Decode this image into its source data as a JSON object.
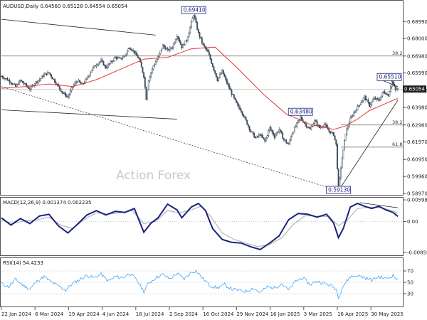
{
  "chart_data": [
    {
      "type": "candlestick",
      "panel": "price",
      "title": "AUDUSD,Daily",
      "ohlc_readout": "0.64560 0.65128 0.64554 0.65054",
      "last_price": "0.65054",
      "ylim": [
        0.5897,
        0.7008
      ],
      "y_ticks": [
        "0.68990",
        "0.68000",
        "0.66980",
        "0.65990",
        "0.64970",
        "0.63980",
        "0.62960",
        "0.61970",
        "0.60950",
        "0.59960",
        "0.58970"
      ],
      "x_ticks": [
        "22 Jan 2024",
        "6 Mar 2024",
        "19 Apr 2024",
        "4 Jun 2024",
        "18 Jul 2024",
        "2 Sep 2024",
        "16 Oct 2024",
        "29 Nov 2024",
        "16 Jan 2025",
        "3 Mar 2025",
        "16 Apr 2025",
        "30 May 2025"
      ],
      "close_path": [
        [
          0,
          0.658
        ],
        [
          4,
          0.6565
        ],
        [
          8,
          0.6545
        ],
        [
          12,
          0.652
        ],
        [
          16,
          0.6555
        ],
        [
          20,
          0.653
        ],
        [
          24,
          0.6505
        ],
        [
          28,
          0.654
        ],
        [
          32,
          0.656
        ],
        [
          36,
          0.659
        ],
        [
          40,
          0.66
        ],
        [
          44,
          0.656
        ],
        [
          48,
          0.652
        ],
        [
          52,
          0.648
        ],
        [
          56,
          0.646
        ],
        [
          60,
          0.652
        ],
        [
          64,
          0.6555
        ],
        [
          68,
          0.653
        ],
        [
          72,
          0.6565
        ],
        [
          76,
          0.662
        ],
        [
          80,
          0.665
        ],
        [
          84,
          0.667
        ],
        [
          88,
          0.663
        ],
        [
          92,
          0.666
        ],
        [
          96,
          0.669
        ],
        [
          100,
          0.668
        ],
        [
          104,
          0.67
        ],
        [
          108,
          0.675
        ],
        [
          112,
          0.672
        ],
        [
          116,
          0.668
        ],
        [
          120,
          0.658
        ],
        [
          122,
          0.645
        ],
        [
          124,
          0.656
        ],
        [
          128,
          0.664
        ],
        [
          132,
          0.669
        ],
        [
          136,
          0.676
        ],
        [
          140,
          0.673
        ],
        [
          144,
          0.675
        ],
        [
          148,
          0.682
        ],
        [
          152,
          0.675
        ],
        [
          156,
          0.679
        ],
        [
          160,
          0.689
        ],
        [
          162,
          0.6941
        ],
        [
          166,
          0.683
        ],
        [
          170,
          0.676
        ],
        [
          174,
          0.672
        ],
        [
          178,
          0.664
        ],
        [
          182,
          0.656
        ],
        [
          186,
          0.661
        ],
        [
          190,
          0.654
        ],
        [
          194,
          0.648
        ],
        [
          198,
          0.642
        ],
        [
          202,
          0.638
        ],
        [
          206,
          0.632
        ],
        [
          210,
          0.626
        ],
        [
          214,
          0.622
        ],
        [
          218,
          0.624
        ],
        [
          222,
          0.62
        ],
        [
          226,
          0.628
        ],
        [
          230,
          0.623
        ],
        [
          234,
          0.627
        ],
        [
          238,
          0.621
        ],
        [
          242,
          0.618
        ],
        [
          244,
          0.6235
        ],
        [
          248,
          0.629
        ],
        [
          252,
          0.634
        ],
        [
          256,
          0.63
        ],
        [
          260,
          0.627
        ],
        [
          264,
          0.632
        ],
        [
          268,
          0.628
        ],
        [
          272,
          0.63
        ],
        [
          276,
          0.626
        ],
        [
          280,
          0.624
        ],
        [
          282,
          0.618
        ],
        [
          284,
          0.5913
        ],
        [
          286,
          0.605
        ],
        [
          290,
          0.625
        ],
        [
          294,
          0.633
        ],
        [
          298,
          0.638
        ],
        [
          302,
          0.642
        ],
        [
          306,
          0.646
        ],
        [
          310,
          0.641
        ],
        [
          314,
          0.645
        ],
        [
          318,
          0.644
        ],
        [
          322,
          0.649
        ],
        [
          326,
          0.647
        ],
        [
          329,
          0.6551
        ],
        [
          332,
          0.65
        ],
        [
          334,
          0.6505
        ]
      ],
      "sma_path": [
        [
          0,
          0.651
        ],
        [
          20,
          0.652
        ],
        [
          40,
          0.6535
        ],
        [
          60,
          0.652
        ],
        [
          80,
          0.656
        ],
        [
          100,
          0.662
        ],
        [
          120,
          0.668
        ],
        [
          140,
          0.669
        ],
        [
          160,
          0.674
        ],
        [
          180,
          0.675
        ],
        [
          200,
          0.662
        ],
        [
          220,
          0.648
        ],
        [
          240,
          0.636
        ],
        [
          260,
          0.63
        ],
        [
          280,
          0.627
        ],
        [
          290,
          0.629
        ],
        [
          300,
          0.633
        ],
        [
          310,
          0.638
        ],
        [
          320,
          0.641
        ],
        [
          330,
          0.644
        ],
        [
          334,
          0.645
        ]
      ],
      "labels": [
        "0.69410",
        "0.63480",
        "0.65510",
        "0.59130"
      ],
      "fib_levels": [
        {
          "label": "38.2",
          "value": 0.6698,
          "x_start": 0
        },
        {
          "label": "38.2",
          "value": 0.6296,
          "x_start": 286
        },
        {
          "label": "61.8",
          "value": 0.6167,
          "x_start": 286
        }
      ],
      "watermark": "Action Forex"
    },
    {
      "type": "line",
      "panel": "macd",
      "title": "MACD(12,26,9) 0.001374 0.002235",
      "ylim": [
        -0.0092,
        0.0062
      ],
      "y_ticks": [
        "0.005981",
        "0.00",
        "-0.00859"
      ],
      "series": [
        {
          "values": [
            [
              0,
              0.001
            ],
            [
              8,
              -0.001
            ],
            [
              16,
              0.0008
            ],
            [
              24,
              -0.0006
            ],
            [
              32,
              0.0015
            ],
            [
              40,
              0.002
            ],
            [
              48,
              -0.0012
            ],
            [
              56,
              -0.0032
            ],
            [
              64,
              -0.0008
            ],
            [
              72,
              0.0018
            ],
            [
              80,
              0.003
            ],
            [
              88,
              0.0018
            ],
            [
              96,
              0.0028
            ],
            [
              104,
              0.0025
            ],
            [
              112,
              0.0036
            ],
            [
              120,
              -0.003
            ],
            [
              126,
              -0.0005
            ],
            [
              132,
              0.001
            ],
            [
              140,
              0.0048
            ],
            [
              148,
              0.0032
            ],
            [
              152,
              0.001
            ],
            [
              160,
              0.004
            ],
            [
              166,
              0.005
            ],
            [
              172,
              0.003
            ],
            [
              178,
              -0.002
            ],
            [
              186,
              -0.005
            ],
            [
              194,
              -0.0058
            ],
            [
              202,
              -0.006
            ],
            [
              210,
              -0.007
            ],
            [
              218,
              -0.0078
            ],
            [
              226,
              -0.006
            ],
            [
              234,
              -0.004
            ],
            [
              242,
              0.0005
            ],
            [
              250,
              0.0022
            ],
            [
              258,
              0.002
            ],
            [
              266,
              0.0012
            ],
            [
              274,
              0.002
            ],
            [
              280,
              -0.0005
            ],
            [
              284,
              -0.0045
            ],
            [
              288,
              -0.002
            ],
            [
              294,
              0.004
            ],
            [
              300,
              0.005
            ],
            [
              306,
              0.0042
            ],
            [
              312,
              0.0036
            ],
            [
              318,
              0.0042
            ],
            [
              324,
              0.0032
            ],
            [
              330,
              0.0025
            ],
            [
              334,
              0.0014
            ]
          ]
        },
        {
          "values": [
            [
              0,
              0.0004
            ],
            [
              10,
              -0.0006
            ],
            [
              20,
              0.0002
            ],
            [
              30,
              0.0004
            ],
            [
              40,
              0.0012
            ],
            [
              50,
              -0.001
            ],
            [
              60,
              -0.002
            ],
            [
              70,
              0.0006
            ],
            [
              80,
              0.0024
            ],
            [
              90,
              0.002
            ],
            [
              100,
              0.0024
            ],
            [
              110,
              0.003
            ],
            [
              120,
              -0.0006
            ],
            [
              130,
              0.0
            ],
            [
              140,
              0.003
            ],
            [
              150,
              0.0024
            ],
            [
              160,
              0.0032
            ],
            [
              168,
              0.0042
            ],
            [
              176,
              0.0016
            ],
            [
              186,
              -0.0032
            ],
            [
              196,
              -0.005
            ],
            [
              206,
              -0.006
            ],
            [
              216,
              -0.007
            ],
            [
              226,
              -0.0064
            ],
            [
              236,
              -0.0046
            ],
            [
              246,
              -0.0008
            ],
            [
              256,
              0.0016
            ],
            [
              266,
              0.0014
            ],
            [
              276,
              0.0014
            ],
            [
              284,
              -0.0012
            ],
            [
              292,
              0.0006
            ],
            [
              300,
              0.0036
            ],
            [
              310,
              0.004
            ],
            [
              320,
              0.0038
            ],
            [
              330,
              0.003
            ],
            [
              334,
              0.0022
            ]
          ]
        }
      ]
    },
    {
      "type": "line",
      "panel": "rsi",
      "title": "RSI(14) 54.4233",
      "ylim": [
        10,
        90
      ],
      "y_ticks": [
        "70",
        "50",
        "30"
      ],
      "series": [
        {
          "values": [
            [
              0,
              48
            ],
            [
              6,
              42
            ],
            [
              12,
              55
            ],
            [
              18,
              45
            ],
            [
              24,
              38
            ],
            [
              30,
              52
            ],
            [
              36,
              60
            ],
            [
              42,
              50
            ],
            [
              48,
              44
            ],
            [
              54,
              36
            ],
            [
              60,
              48
            ],
            [
              66,
              55
            ],
            [
              72,
              62
            ],
            [
              78,
              58
            ],
            [
              84,
              64
            ],
            [
              90,
              52
            ],
            [
              96,
              60
            ],
            [
              102,
              58
            ],
            [
              108,
              66
            ],
            [
              114,
              54
            ],
            [
              120,
              34
            ],
            [
              124,
              48
            ],
            [
              130,
              58
            ],
            [
              136,
              64
            ],
            [
              142,
              56
            ],
            [
              148,
              66
            ],
            [
              154,
              56
            ],
            [
              160,
              68
            ],
            [
              164,
              70
            ],
            [
              170,
              56
            ],
            [
              176,
              44
            ],
            [
              182,
              40
            ],
            [
              188,
              46
            ],
            [
              194,
              38
            ],
            [
              200,
              36
            ],
            [
              206,
              34
            ],
            [
              212,
              40
            ],
            [
              218,
              32
            ],
            [
              224,
              42
            ],
            [
              230,
              40
            ],
            [
              236,
              48
            ],
            [
              242,
              36
            ],
            [
              248,
              52
            ],
            [
              254,
              58
            ],
            [
              260,
              46
            ],
            [
              266,
              52
            ],
            [
              272,
              48
            ],
            [
              278,
              44
            ],
            [
              282,
              38
            ],
            [
              284,
              24
            ],
            [
              288,
              44
            ],
            [
              294,
              60
            ],
            [
              300,
              62
            ],
            [
              306,
              58
            ],
            [
              312,
              54
            ],
            [
              318,
              60
            ],
            [
              324,
              56
            ],
            [
              330,
              62
            ],
            [
              334,
              54
            ]
          ]
        }
      ]
    }
  ]
}
